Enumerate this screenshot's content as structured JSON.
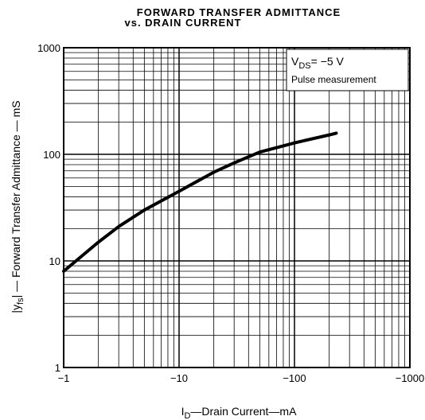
{
  "chart_data": {
    "type": "line",
    "title": "FORWARD TRANSFER ADMITTANCE",
    "subtitle": "vs. DRAIN CURRENT",
    "x_label": {
      "main": "I",
      "sub": "D",
      "rest": "—Drain Current—mA"
    },
    "y_label": {
      "main": "|y",
      "sub": "fs",
      "rest": "| — Forward Transfer Admittance — mS"
    },
    "annotations": [
      {
        "main": "V",
        "sub": "DS",
        "rest": "= −5 V"
      },
      {
        "main": "Pulse measurement"
      }
    ],
    "xlog": true,
    "ylog": true,
    "grid": true,
    "minor_grid": true,
    "xlim": [
      -1,
      -1000
    ],
    "ylim": [
      1,
      1000
    ],
    "xticks": [
      {
        "value": -1,
        "label": "−1"
      },
      {
        "value": -10,
        "label": "−10"
      },
      {
        "value": -100,
        "label": "−100"
      },
      {
        "value": -1000,
        "label": "−1000"
      }
    ],
    "yticks": [
      1,
      10,
      100,
      1000
    ],
    "series": [
      {
        "color": "#000000",
        "x": [
          -1,
          -2,
          -3,
          -5,
          -10,
          -20,
          -30,
          -50,
          -100,
          -200,
          -230
        ],
        "values": [
          8,
          15,
          21,
          30,
          45,
          68,
          83,
          105,
          128,
          152,
          158
        ]
      }
    ]
  }
}
